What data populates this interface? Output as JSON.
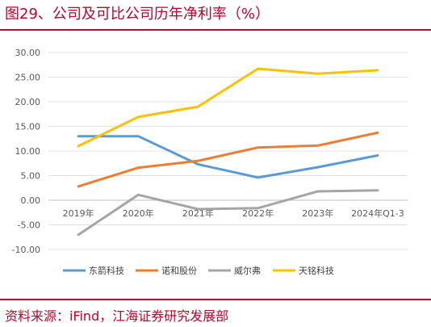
{
  "header": {
    "title": "图29、公司及可比公司历年净利率（%）"
  },
  "footer": {
    "source": "资料来源：iFind，江海证券研究发展部"
  },
  "chart_data": {
    "type": "line",
    "title": "",
    "xlabel": "",
    "ylabel": "",
    "categories": [
      "2019年",
      "2020年",
      "2021年",
      "2022年",
      "2023年",
      "2024年Q1-3"
    ],
    "y_ticks": [
      "30.00",
      "25.00",
      "20.00",
      "15.00",
      "10.00",
      "5.00",
      "0.00",
      "-5.00",
      "-10.00"
    ],
    "ylim": [
      -10,
      30
    ],
    "grid": true,
    "legend_position": "bottom",
    "series": [
      {
        "name": "东箭科技",
        "color": "#5b9bd5",
        "values": [
          13.0,
          13.0,
          7.3,
          4.6,
          6.7,
          9.1
        ]
      },
      {
        "name": "诺和股份",
        "color": "#ed7d31",
        "values": [
          2.8,
          6.6,
          8.0,
          10.7,
          11.1,
          13.7
        ]
      },
      {
        "name": "威尔弗",
        "color": "#a5a5a5",
        "values": [
          -7.0,
          1.1,
          -1.8,
          -1.6,
          1.8,
          2.0
        ]
      },
      {
        "name": "天铭科技",
        "color": "#ffc000",
        "values": [
          11.0,
          16.9,
          19.0,
          26.7,
          25.7,
          26.4
        ]
      }
    ]
  }
}
